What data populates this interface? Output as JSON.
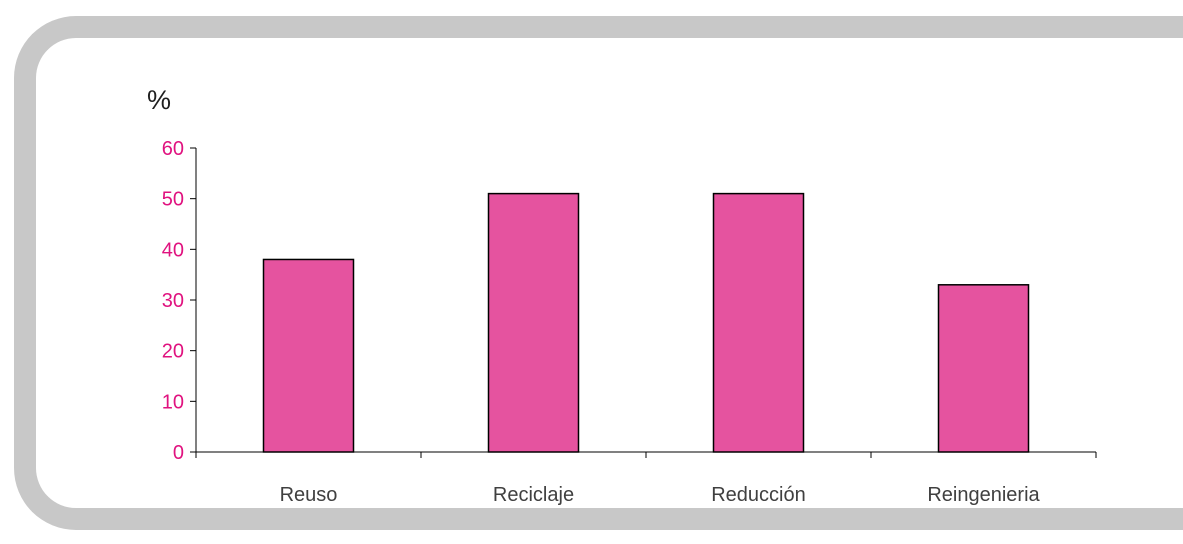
{
  "chart_data": {
    "type": "bar",
    "categories": [
      "Reuso",
      "Reciclaje",
      "Reducción",
      "Reingenieria"
    ],
    "values": [
      38,
      51,
      51,
      33
    ],
    "title": "",
    "xlabel": "",
    "ylabel": "%",
    "ylim": [
      0,
      60
    ],
    "yticks": [
      "0",
      "10",
      "20",
      "30",
      "40",
      "50",
      "60"
    ],
    "grid": false,
    "legend": "none",
    "colors": {
      "bar_fill": "#e5539f",
      "bar_stroke": "#000000",
      "ytick_text": "#e0127f",
      "xtick_text": "#404040",
      "frame": "#c8c8c8"
    }
  }
}
